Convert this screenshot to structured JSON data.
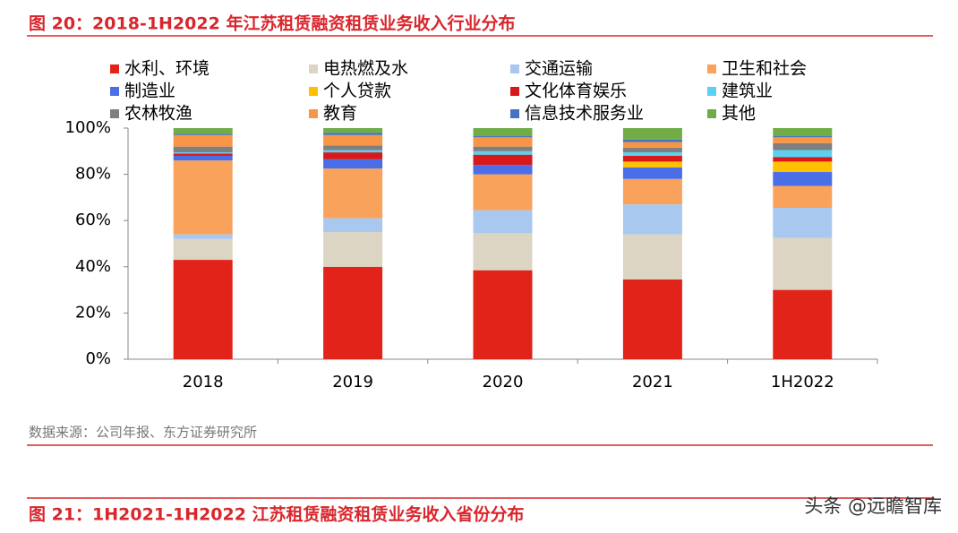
{
  "chart_data": {
    "type": "stacked_bar",
    "title": "图 20：2018-1H2022 年江苏租赁融资租赁业务收入行业分布",
    "categories": [
      "2018",
      "2019",
      "2020",
      "2021",
      "1H2022"
    ],
    "series": [
      {
        "name": "水利、环境",
        "color": "#e2231a",
        "values": [
          43,
          40,
          38.5,
          34.5,
          30
        ]
      },
      {
        "name": "电热燃及水",
        "color": "#ddd5c3",
        "values": [
          9,
          15,
          16,
          19.5,
          22.5
        ]
      },
      {
        "name": "交通运输",
        "color": "#a9c8f0",
        "values": [
          2,
          6,
          10,
          13,
          13
        ]
      },
      {
        "name": "卫生和社会",
        "color": "#f9a25c",
        "values": [
          32,
          21.5,
          15.5,
          11,
          9.5
        ]
      },
      {
        "name": "制造业",
        "color": "#4a6ee8",
        "values": [
          2,
          4,
          4,
          5,
          6
        ]
      },
      {
        "name": "个人贷款",
        "color": "#ffc000",
        "values": [
          0,
          0,
          0,
          2.5,
          4.5
        ]
      },
      {
        "name": "文化体育娱乐",
        "color": "#d7191c",
        "values": [
          1,
          3,
          4.5,
          2.5,
          2
        ]
      },
      {
        "name": "建筑业",
        "color": "#5bd0f0",
        "values": [
          0.5,
          1,
          1.5,
          1.5,
          3
        ]
      },
      {
        "name": "农林牧渔",
        "color": "#7f7f7f",
        "values": [
          2.5,
          2,
          2,
          2,
          3
        ]
      },
      {
        "name": "教育",
        "color": "#f79646",
        "values": [
          5,
          4.5,
          4,
          2.5,
          2.5
        ]
      },
      {
        "name": "信息技术服务业",
        "color": "#4472c4",
        "values": [
          0.5,
          1,
          0.5,
          1,
          0.5
        ]
      },
      {
        "name": "其他",
        "color": "#70ad47",
        "values": [
          2.5,
          2,
          3.5,
          5,
          3.5
        ]
      }
    ],
    "ylim": [
      0,
      100
    ],
    "yticks": [
      {
        "value": 0,
        "label": "0%"
      },
      {
        "value": 20,
        "label": "20%"
      },
      {
        "value": 40,
        "label": "40%"
      },
      {
        "value": 60,
        "label": "60%"
      },
      {
        "value": 80,
        "label": "80%"
      },
      {
        "value": 100,
        "label": "100%"
      }
    ],
    "source": "数据来源：公司年报、东方证券研究所"
  },
  "next_figure_title": "图 21：1H2021-1H2022 江苏租赁融资租赁业务收入省份分布",
  "watermark": "头条 @远瞻智库"
}
